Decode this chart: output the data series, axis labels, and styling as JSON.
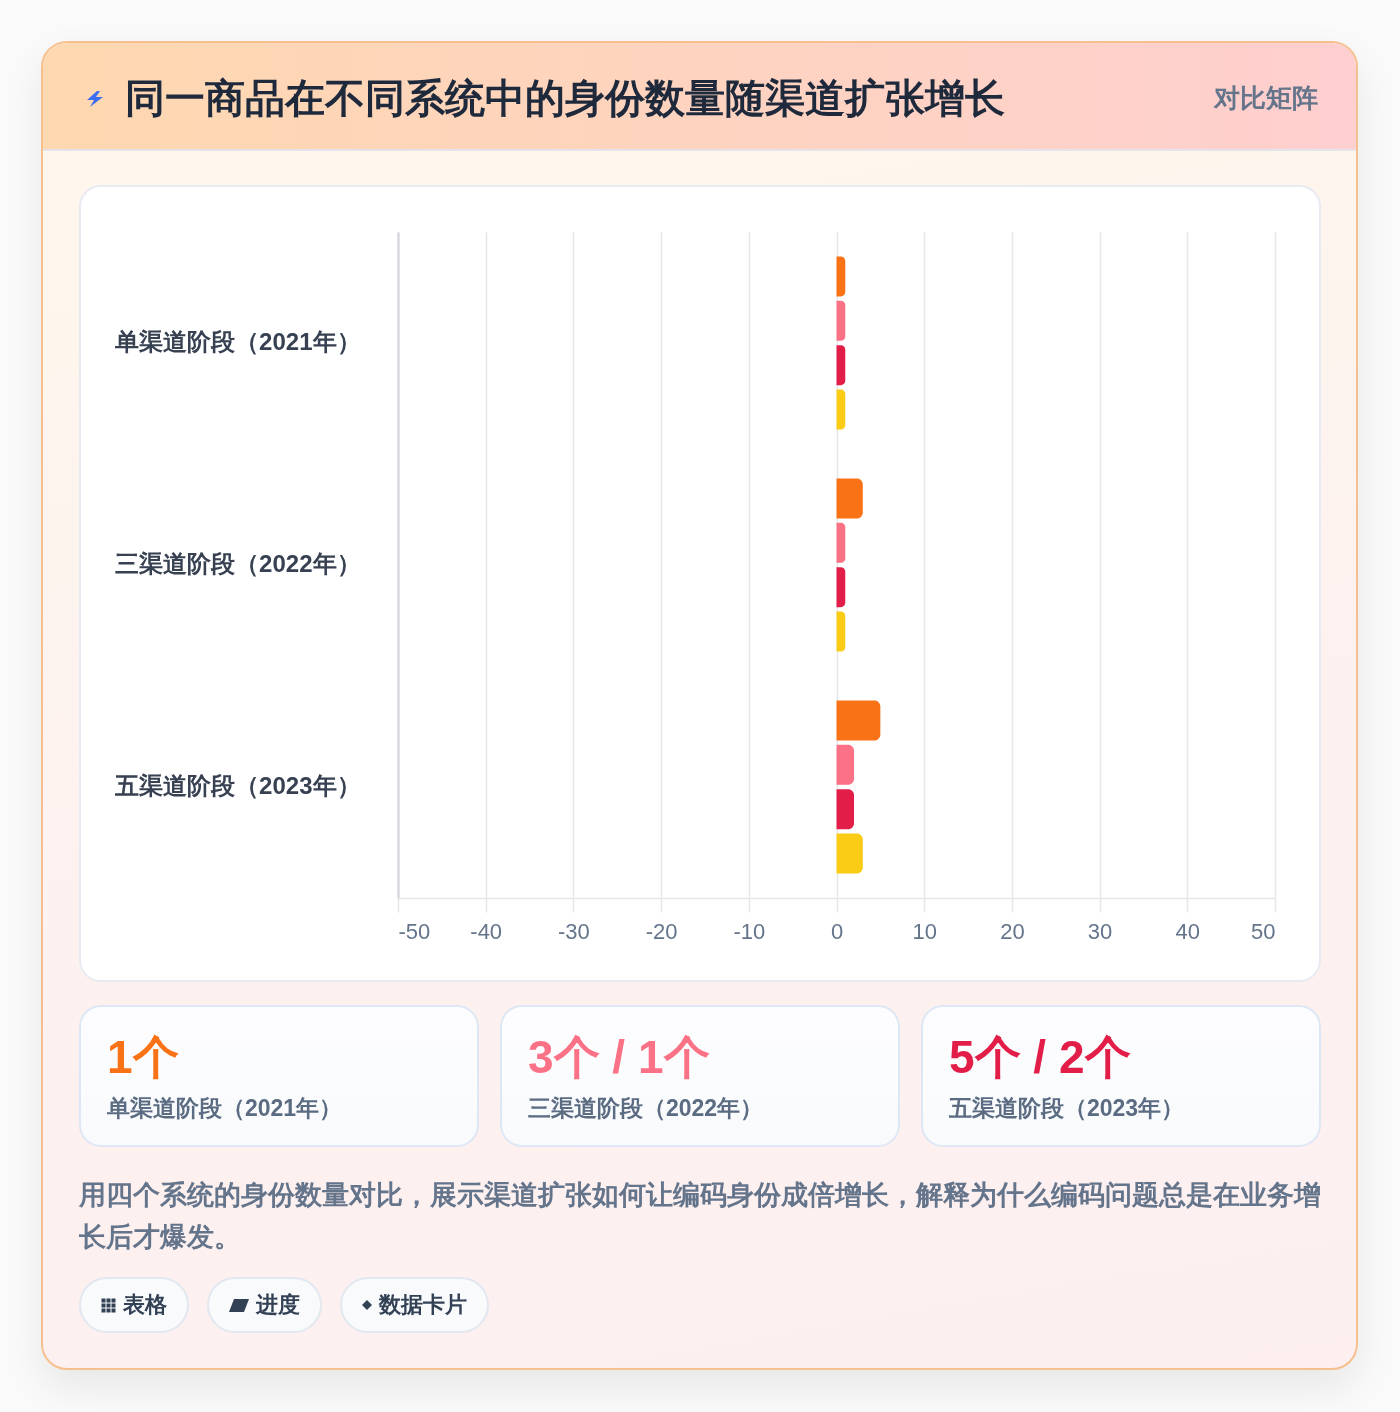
{
  "chart_data": [
    {
      "type": "bar",
      "orientation": "horizontal",
      "title": "同一商品在不同系统中的身份数量随渠道扩张增长",
      "subtitle": "对比矩阵",
      "categories": [
        "单渠道阶段（2021年）",
        "三渠道阶段（2022年）",
        "五渠道阶段（2023年）"
      ],
      "series": [
        {
          "color": "#f97316",
          "values": [
            1,
            3,
            5
          ]
        },
        {
          "color": "#fb7185",
          "values": [
            1,
            1,
            2
          ]
        },
        {
          "color": "#e11d48",
          "values": [
            1,
            1,
            2
          ]
        },
        {
          "color": "#facc15",
          "values": [
            1,
            1,
            3
          ]
        }
      ],
      "xlim": [
        -50,
        50
      ],
      "xticks": [
        -50,
        -40,
        -30,
        -20,
        -10,
        0,
        10,
        20,
        30,
        40,
        50
      ],
      "grid": "x",
      "annotations": [
        "用四个系统的身份数量对比，展示渠道扩张如何让编码身份成倍增长，解释为什么编码问题总是在业务增长后才爆发。",
        "表格",
        "进度",
        "数据卡片"
      ]
    },
    {
      "type": "other",
      "annotations": [
        "1个",
        "单渠道阶段（2021年）",
        "3个 / 1个",
        "三渠道阶段（2022年）",
        "5个 / 2个",
        "五渠道阶段（2023年）"
      ],
      "colors": [
        "#f97316",
        "#fb7185",
        "#e11d48"
      ]
    }
  ]
}
